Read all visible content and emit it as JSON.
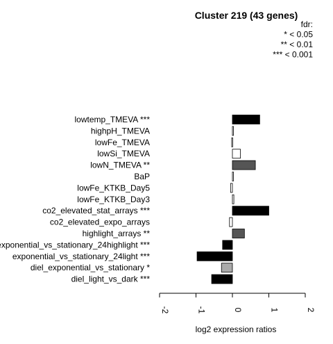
{
  "chart_data": {
    "type": "bar",
    "orientation": "horizontal",
    "title": "Cluster 219 (43 genes)",
    "legend_lines": [
      "fdr:",
      "* < 0.05",
      "** < 0.01",
      "*** < 0.001"
    ],
    "xlabel": "log2 expression ratios",
    "xlim": [
      -2,
      2
    ],
    "xticks": [
      "-2",
      "-1",
      "0",
      "1",
      "2"
    ],
    "categories": [
      "lowtemp_TMEVA ***",
      "highpH_TMEVA",
      "lowFe_TMEVA",
      "lowSi_TMEVA",
      "lowN_TMEVA **",
      "BaP",
      "lowFe_KTKB_Day5",
      "lowFe_KTKB_Day3",
      "co2_elevated_stat_arrays ***",
      "co2_elevated_expo_arrays",
      "highlight_arrays **",
      "exponential_vs_stationary_24highlight ***",
      "exponential_vs_stationary_24light ***",
      "diel_exponential_vs_stationary *",
      "diel_light_vs_dark ***"
    ],
    "values": [
      0.75,
      0.02,
      -0.02,
      0.22,
      0.63,
      0.0,
      -0.05,
      0.04,
      1.0,
      -0.08,
      0.33,
      -0.27,
      -0.97,
      -0.3,
      -0.57
    ],
    "bar_colors": [
      "#000000",
      "#ffffff",
      "#ffffff",
      "#ffffff",
      "#555555",
      "#ffffff",
      "#ffffff",
      "#ffffff",
      "#000000",
      "#ffffff",
      "#555555",
      "#000000",
      "#000000",
      "#aaaaaa",
      "#000000"
    ]
  }
}
